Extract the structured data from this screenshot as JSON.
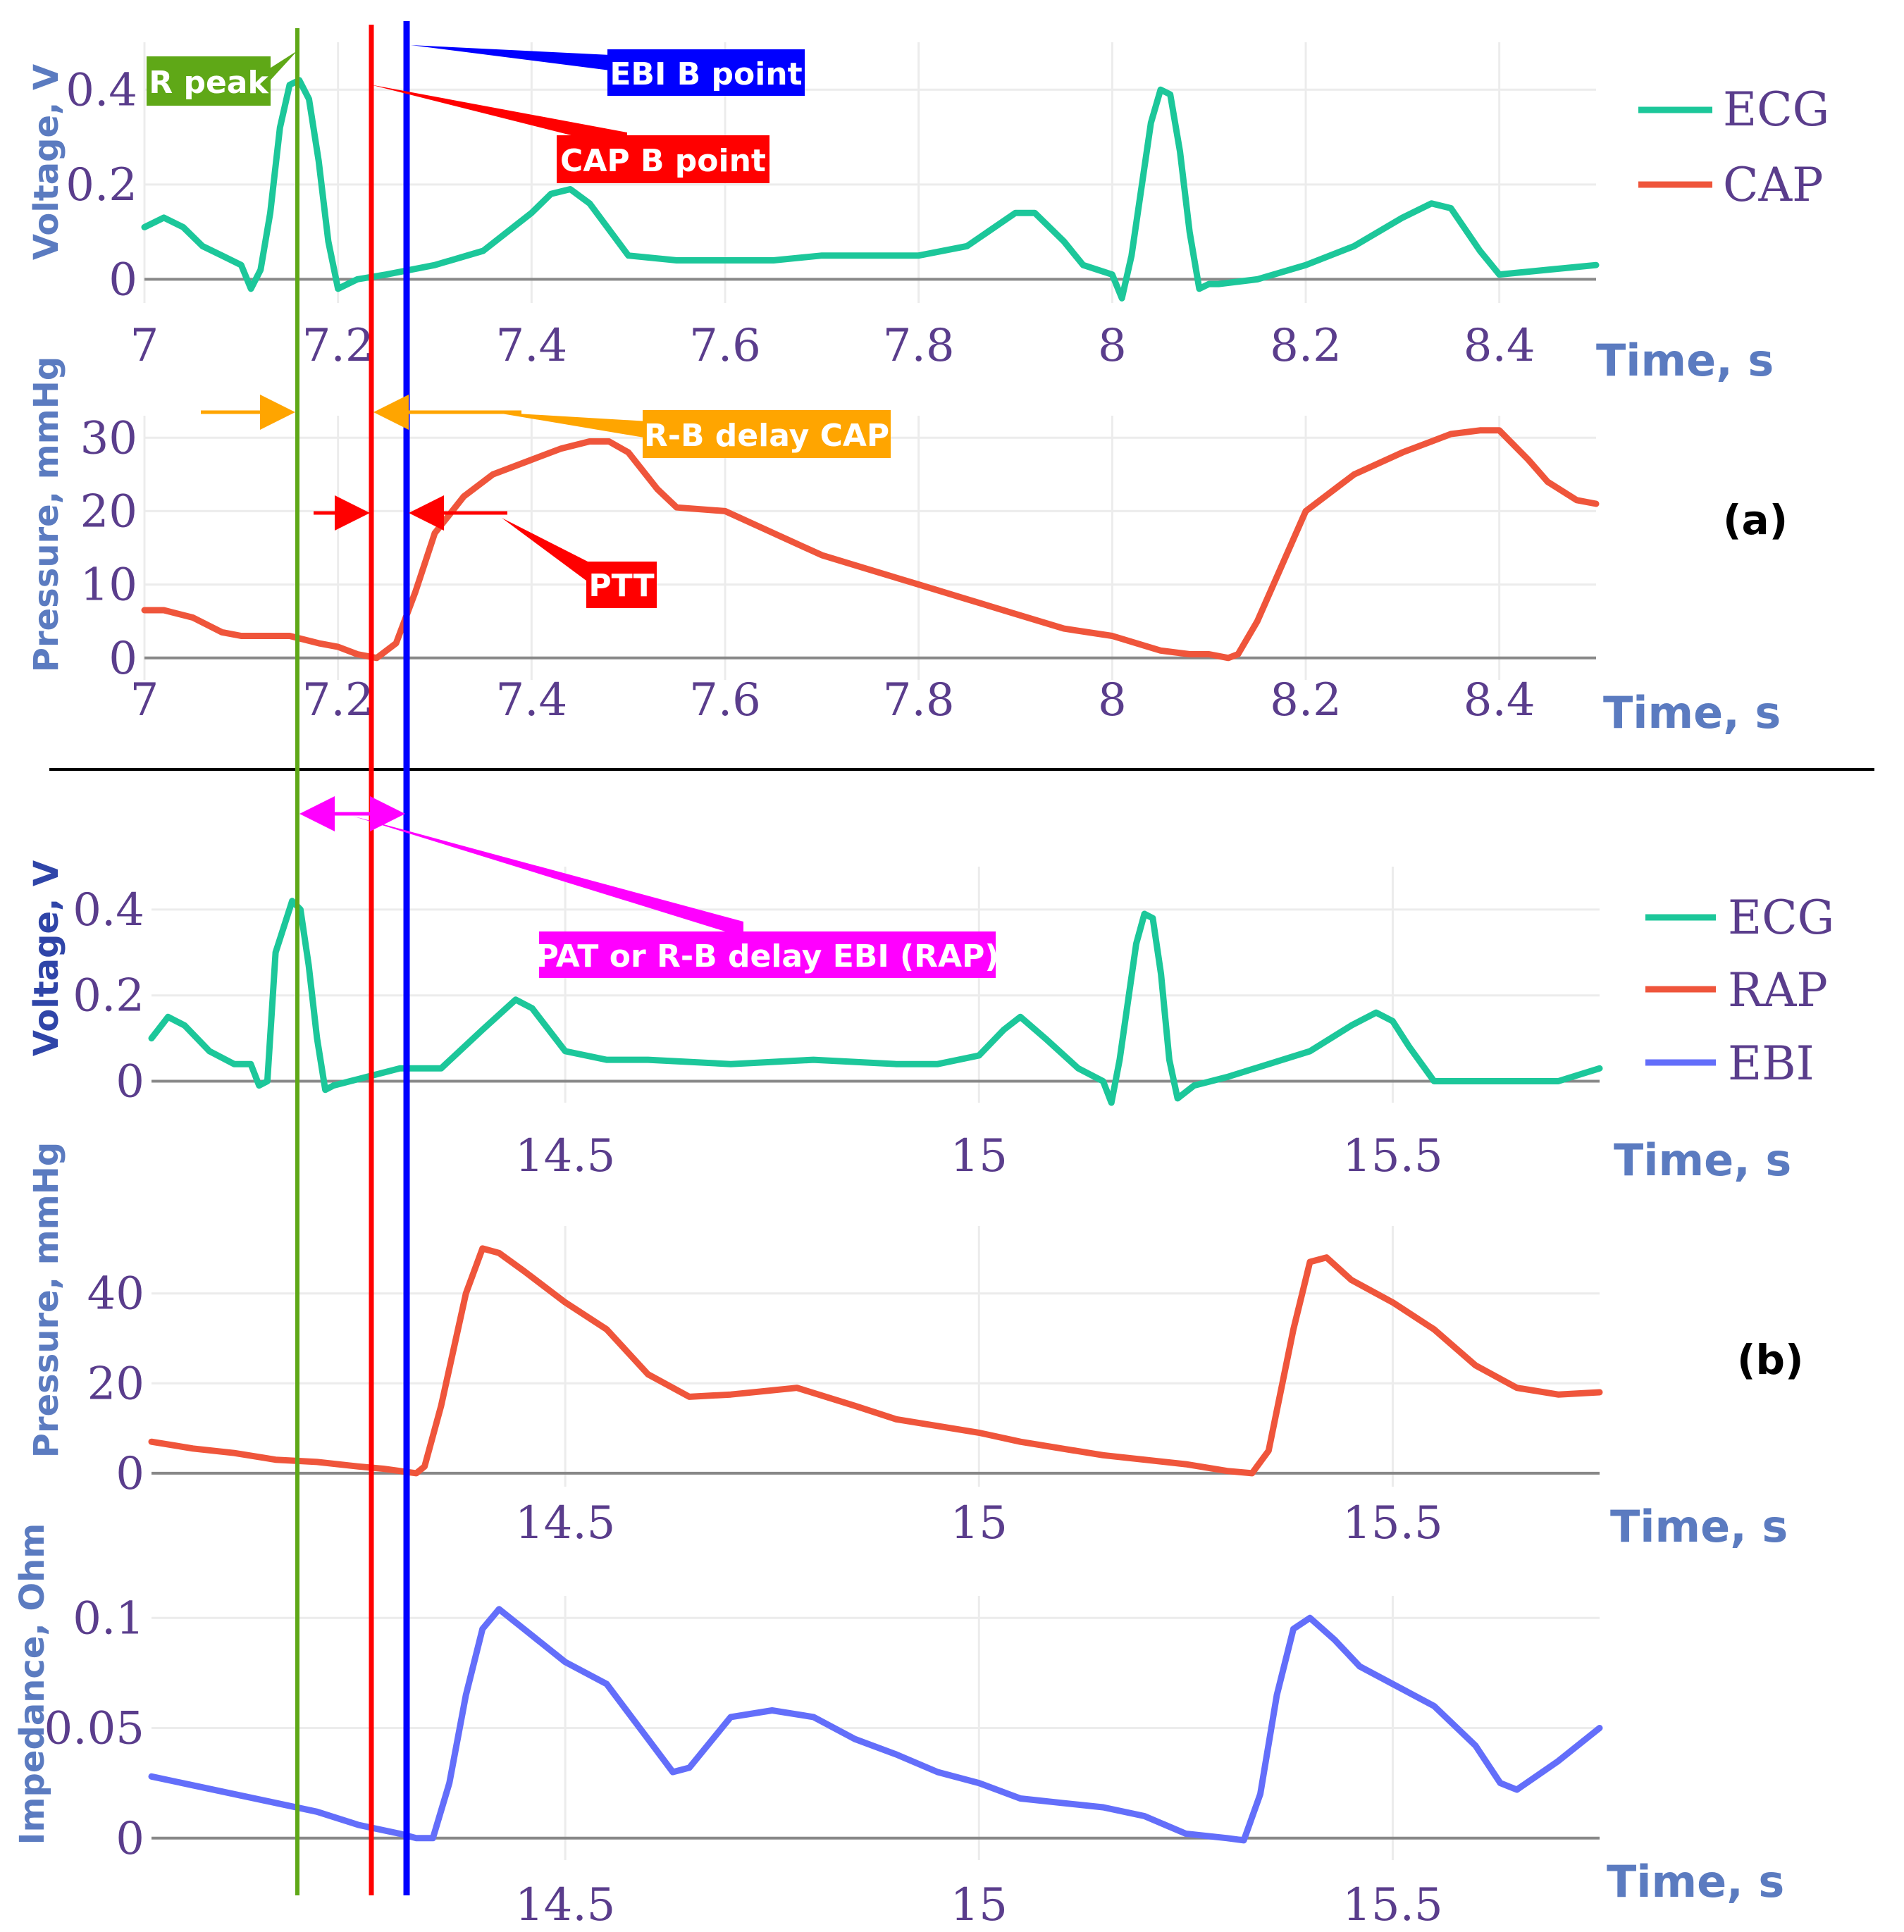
{
  "chart_data": [
    {
      "id": "a-ecg",
      "type": "line",
      "panel": "(a)",
      "ylabel": "Voltage, V",
      "xlabel": "Time, s",
      "xlim": [
        7,
        8.5
      ],
      "ylim": [
        -0.05,
        0.5
      ],
      "xticks": [
        7,
        7.2,
        7.4,
        7.6,
        7.8,
        8,
        8.2,
        8.4
      ],
      "xtick_labels": [
        "7",
        "7.2",
        "7.4",
        "7.6",
        "7.8",
        "8",
        "8.2",
        "8.4"
      ],
      "yticks": [
        0,
        0.2,
        0.4
      ],
      "ytick_labels": [
        "0",
        "0.2",
        "0.4"
      ],
      "legend": [
        "ECG",
        "CAP"
      ],
      "series": [
        {
          "name": "ECG",
          "color": "#1cc79a",
          "x": [
            7.0,
            7.02,
            7.04,
            7.06,
            7.08,
            7.1,
            7.11,
            7.12,
            7.13,
            7.14,
            7.15,
            7.16,
            7.17,
            7.18,
            7.19,
            7.2,
            7.21,
            7.22,
            7.25,
            7.3,
            7.35,
            7.4,
            7.42,
            7.44,
            7.46,
            7.5,
            7.55,
            7.6,
            7.65,
            7.7,
            7.75,
            7.8,
            7.85,
            7.9,
            7.92,
            7.95,
            7.97,
            8.0,
            8.01,
            8.02,
            8.04,
            8.05,
            8.06,
            8.07,
            8.08,
            8.09,
            8.1,
            8.11,
            8.15,
            8.2,
            8.25,
            8.3,
            8.33,
            8.35,
            8.36,
            8.38,
            8.4,
            8.45,
            8.5
          ],
          "y": [
            0.11,
            0.13,
            0.11,
            0.07,
            0.05,
            0.03,
            -0.02,
            0.02,
            0.14,
            0.32,
            0.41,
            0.42,
            0.38,
            0.25,
            0.08,
            -0.02,
            -0.01,
            0.0,
            0.01,
            0.03,
            0.06,
            0.14,
            0.18,
            0.19,
            0.16,
            0.05,
            0.04,
            0.04,
            0.04,
            0.05,
            0.05,
            0.05,
            0.07,
            0.14,
            0.14,
            0.08,
            0.03,
            0.01,
            -0.04,
            0.05,
            0.33,
            0.4,
            0.39,
            0.27,
            0.1,
            -0.02,
            -0.01,
            -0.01,
            0.0,
            0.03,
            0.07,
            0.13,
            0.16,
            0.15,
            0.12,
            0.06,
            0.01,
            0.02,
            0.03
          ]
        },
        {
          "name": "CAP",
          "color": "#ef553b",
          "x": [],
          "y": []
        }
      ]
    },
    {
      "id": "a-cap",
      "type": "line",
      "panel": "(a)",
      "ylabel": "Pressure, mmHg",
      "xlabel": "Time, s",
      "xlim": [
        7,
        8.5
      ],
      "ylim": [
        -3,
        33
      ],
      "xticks": [
        7,
        7.2,
        7.4,
        7.6,
        7.8,
        8,
        8.2,
        8.4
      ],
      "xtick_labels": [
        "7",
        "7.2",
        "7.4",
        "7.6",
        "7.8",
        "8",
        "8.2",
        "8.4"
      ],
      "yticks": [
        0,
        10,
        20,
        30
      ],
      "ytick_labels": [
        "0",
        "10",
        "20",
        "30"
      ],
      "series": [
        {
          "name": "CAP",
          "color": "#ef553b",
          "x": [
            7.0,
            7.02,
            7.05,
            7.08,
            7.1,
            7.15,
            7.18,
            7.2,
            7.22,
            7.24,
            7.26,
            7.28,
            7.3,
            7.33,
            7.36,
            7.4,
            7.43,
            7.46,
            7.48,
            7.5,
            7.53,
            7.55,
            7.6,
            7.65,
            7.7,
            7.75,
            7.8,
            7.85,
            7.9,
            7.95,
            8.0,
            8.05,
            8.08,
            8.1,
            8.12,
            8.13,
            8.15,
            8.18,
            8.2,
            8.25,
            8.3,
            8.35,
            8.38,
            8.4,
            8.43,
            8.45,
            8.48,
            8.5
          ],
          "y": [
            6.5,
            6.5,
            5.5,
            3.5,
            3.0,
            3.0,
            2.0,
            1.5,
            0.5,
            0.0,
            2.0,
            9.0,
            17.0,
            22.0,
            25.0,
            27.0,
            28.5,
            29.5,
            29.5,
            28.0,
            23.0,
            20.5,
            20.0,
            17.0,
            14.0,
            12.0,
            10.0,
            8.0,
            6.0,
            4.0,
            3.0,
            1.0,
            0.5,
            0.5,
            0.0,
            0.5,
            5.0,
            14.0,
            20.0,
            25.0,
            28.0,
            30.5,
            31.0,
            31.0,
            27.0,
            24.0,
            21.5,
            21.0
          ]
        }
      ]
    },
    {
      "id": "b-ecg",
      "type": "line",
      "panel": "(b)",
      "ylabel": "Voltage, V",
      "xlabel": "Time, s",
      "xlim": [
        14.0,
        15.75
      ],
      "ylim": [
        -0.05,
        0.5
      ],
      "xticks": [
        14.5,
        15,
        15.5
      ],
      "xtick_labels": [
        "14.5",
        "15",
        "15.5"
      ],
      "yticks": [
        0,
        0.2,
        0.4
      ],
      "ytick_labels": [
        "0",
        "0.2",
        "0.4"
      ],
      "legend": [
        "ECG",
        "RAP",
        "EBI"
      ],
      "series": [
        {
          "name": "ECG",
          "color": "#1cc79a",
          "x": [
            14.0,
            14.02,
            14.04,
            14.07,
            14.1,
            14.12,
            14.13,
            14.14,
            14.15,
            14.17,
            14.18,
            14.19,
            14.2,
            14.21,
            14.22,
            14.24,
            14.3,
            14.35,
            14.4,
            14.44,
            14.46,
            14.5,
            14.55,
            14.6,
            14.7,
            14.8,
            14.9,
            14.95,
            15.0,
            15.03,
            15.05,
            15.08,
            15.12,
            15.15,
            15.16,
            15.17,
            15.19,
            15.2,
            15.21,
            15.22,
            15.23,
            15.24,
            15.26,
            15.3,
            15.4,
            15.45,
            15.48,
            15.5,
            15.52,
            15.55,
            15.6,
            15.7,
            15.75
          ],
          "y": [
            0.1,
            0.15,
            0.13,
            0.07,
            0.04,
            0.04,
            -0.01,
            0.0,
            0.3,
            0.42,
            0.4,
            0.27,
            0.1,
            -0.02,
            -0.01,
            0.0,
            0.03,
            0.03,
            0.12,
            0.19,
            0.17,
            0.07,
            0.05,
            0.05,
            0.04,
            0.05,
            0.04,
            0.04,
            0.06,
            0.12,
            0.15,
            0.1,
            0.03,
            0.0,
            -0.05,
            0.05,
            0.32,
            0.39,
            0.38,
            0.25,
            0.05,
            -0.04,
            -0.01,
            0.01,
            0.07,
            0.13,
            0.16,
            0.14,
            0.08,
            0.0,
            0.0,
            0.0,
            0.03
          ]
        },
        {
          "name": "RAP",
          "color": "#ef553b",
          "x": [],
          "y": []
        },
        {
          "name": "EBI",
          "color": "#636efa",
          "x": [],
          "y": []
        }
      ]
    },
    {
      "id": "b-rap",
      "type": "line",
      "panel": "(b)",
      "ylabel": "Pressure, mmHg",
      "xlabel": "Time, s",
      "xlim": [
        14.0,
        15.75
      ],
      "ylim": [
        -3,
        55
      ],
      "xticks": [
        14.5,
        15,
        15.5
      ],
      "xtick_labels": [
        "14.5",
        "15",
        "15.5"
      ],
      "yticks": [
        0,
        20,
        40
      ],
      "ytick_labels": [
        "0",
        "20",
        "40"
      ],
      "series": [
        {
          "name": "RAP",
          "color": "#ef553b",
          "x": [
            14.0,
            14.05,
            14.1,
            14.15,
            14.2,
            14.25,
            14.28,
            14.3,
            14.32,
            14.33,
            14.35,
            14.38,
            14.4,
            14.42,
            14.45,
            14.5,
            14.55,
            14.6,
            14.65,
            14.7,
            14.78,
            14.85,
            14.9,
            15.0,
            15.05,
            15.1,
            15.15,
            15.2,
            15.25,
            15.3,
            15.33,
            15.35,
            15.38,
            15.4,
            15.42,
            15.45,
            15.5,
            15.55,
            15.6,
            15.65,
            15.7,
            15.75
          ],
          "y": [
            7.0,
            5.5,
            4.5,
            3.0,
            2.5,
            1.5,
            1.0,
            0.5,
            0.0,
            1.5,
            15.0,
            40.0,
            50.0,
            49.0,
            45.0,
            38.0,
            32.0,
            22.0,
            17.0,
            17.5,
            19.0,
            15.0,
            12.0,
            9.0,
            7.0,
            5.5,
            4.0,
            3.0,
            2.0,
            0.5,
            0.0,
            5.0,
            32.0,
            47.0,
            48.0,
            43.0,
            38.0,
            32.0,
            24.0,
            19.0,
            17.5,
            18.0
          ]
        }
      ]
    },
    {
      "id": "b-ebi",
      "type": "line",
      "panel": "(b)",
      "ylabel": "Impedance, Ohm",
      "xlabel": "Time, s",
      "xlim": [
        14.0,
        15.75
      ],
      "ylim": [
        -0.01,
        0.11
      ],
      "xticks": [
        14.5,
        15,
        15.5
      ],
      "xtick_labels": [
        "14.5",
        "15",
        "15.5"
      ],
      "yticks": [
        0,
        0.05,
        0.1
      ],
      "ytick_labels": [
        "0",
        "0.05",
        "0.1"
      ],
      "series": [
        {
          "name": "EBI",
          "color": "#636efa",
          "x": [
            14.0,
            14.05,
            14.1,
            14.15,
            14.2,
            14.25,
            14.3,
            14.32,
            14.34,
            14.36,
            14.38,
            14.4,
            14.42,
            14.45,
            14.5,
            14.55,
            14.6,
            14.63,
            14.65,
            14.7,
            14.75,
            14.8,
            14.85,
            14.9,
            14.95,
            15.0,
            15.05,
            15.1,
            15.15,
            15.2,
            15.25,
            15.3,
            15.32,
            15.34,
            15.36,
            15.38,
            15.4,
            15.43,
            15.46,
            15.5,
            15.55,
            15.6,
            15.63,
            15.65,
            15.7,
            15.75
          ],
          "y": [
            0.028,
            0.024,
            0.02,
            0.016,
            0.012,
            0.006,
            0.002,
            0.0,
            0.0,
            0.025,
            0.065,
            0.095,
            0.104,
            0.095,
            0.08,
            0.07,
            0.045,
            0.03,
            0.032,
            0.055,
            0.058,
            0.055,
            0.045,
            0.038,
            0.03,
            0.025,
            0.018,
            0.016,
            0.014,
            0.01,
            0.002,
            0.0,
            -0.001,
            0.02,
            0.065,
            0.095,
            0.1,
            0.09,
            0.078,
            0.07,
            0.06,
            0.042,
            0.025,
            0.022,
            0.035,
            0.05
          ]
        }
      ]
    }
  ],
  "axis_titles": {
    "a_ecg_y": "Voltage, V",
    "a_cap_y": "Pressure, mmHg",
    "b_ecg_y": "Voltage, V",
    "b_rap_y": "Pressure, mmHg",
    "b_ebi_y": "Impedance, Ohm",
    "time": "Time, s"
  },
  "panel_labels": {
    "a": "(a)",
    "b": "(b)"
  },
  "markers": {
    "r_peak": {
      "label": "R peak",
      "time_a": 7.16,
      "color": "#5fa817"
    },
    "cap_b_point": {
      "label": "CAP B point",
      "time_a": 7.24,
      "color": "#ff0000"
    },
    "ebi_b_point": {
      "label": "EBI B point",
      "time_a": 7.275,
      "color": "#0000ff"
    }
  },
  "annotations": {
    "rb_delay_cap": {
      "label": "R-B delay CAP",
      "color": "#ffa500"
    },
    "ptt": {
      "label": "PTT",
      "color": "#ff0000"
    },
    "pat": {
      "label": "PAT or R-B delay EBI (RAP)",
      "color": "#ff00ff"
    }
  }
}
